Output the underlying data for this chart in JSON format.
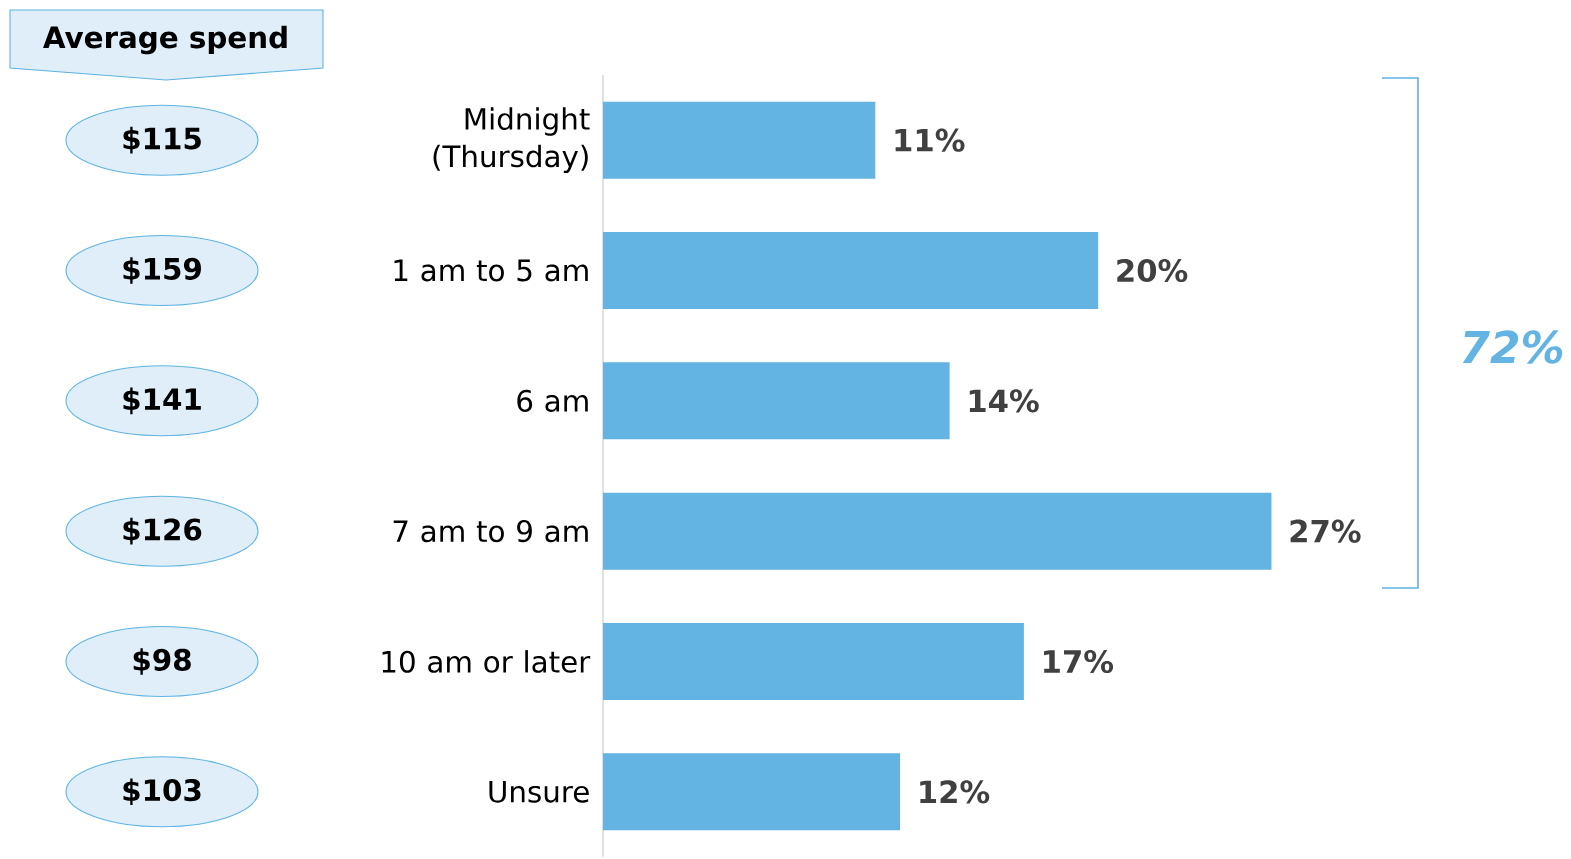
{
  "chart_data": {
    "type": "bar",
    "orientation": "horizontal",
    "categories": [
      "Midnight (Thursday)",
      "1 am to 5 am",
      "6 am",
      "7 am to 9 am",
      "10 am or later",
      "Unsure"
    ],
    "values": [
      11,
      20,
      14,
      27,
      17,
      12
    ],
    "value_labels": [
      "11%",
      "20%",
      "14%",
      "27%",
      "17%",
      "12%"
    ],
    "color": "#63b3e3",
    "annotations": [
      "Average spend",
      "$115",
      "$159",
      "$141",
      "$126",
      "$98",
      "$103",
      "72%"
    ]
  }
}
